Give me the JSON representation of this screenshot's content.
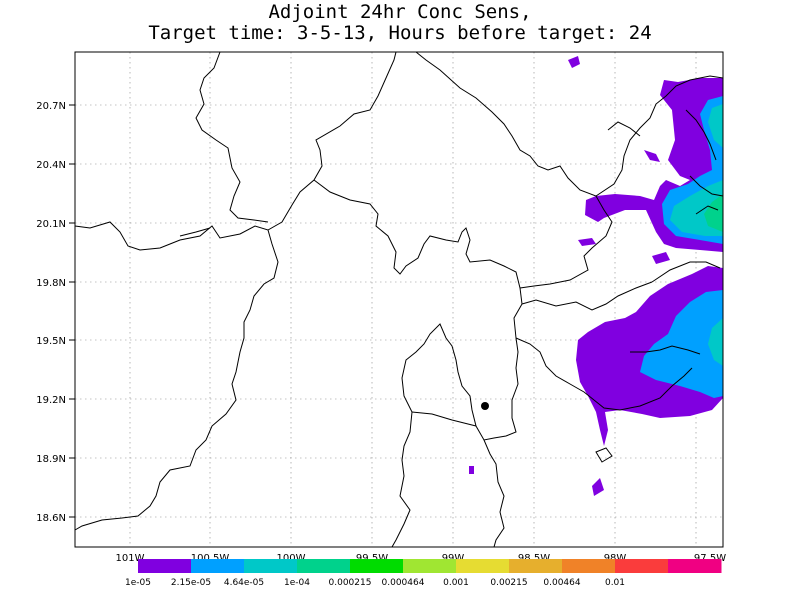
{
  "title": {
    "line1": "Adjoint 24hr Conc Sens,",
    "line2": "Target time: 3-5-13, Hours before target: 24"
  },
  "map": {
    "lat_labels": [
      "20.7N",
      "20.4N",
      "20.1N",
      "19.8N",
      "19.5N",
      "19.2N",
      "18.9N",
      "18.6N"
    ],
    "lon_labels": [
      "101W",
      "100.5W",
      "100W",
      "99.5W",
      "99W",
      "98.5W",
      "98W",
      "97.5W"
    ],
    "lon_range": [
      -101.5,
      -97.5
    ],
    "lat_range": [
      18.45,
      20.95
    ],
    "target_point": {
      "lon": -98.98,
      "lat": 19.17
    }
  },
  "colorbar": {
    "colors": [
      "#8000e0",
      "#00a0ff",
      "#00c8c8",
      "#00d28c",
      "#00dc00",
      "#a0e632",
      "#e6dc32",
      "#e6af2d",
      "#f08228",
      "#fa3c3c",
      "#f00082"
    ],
    "labels": [
      "1e-05",
      "2.15e-05",
      "4.64e-05",
      "1e-04",
      "0.000215",
      "0.000464",
      "0.001",
      "0.00215",
      "0.00464",
      "0.01"
    ]
  }
}
